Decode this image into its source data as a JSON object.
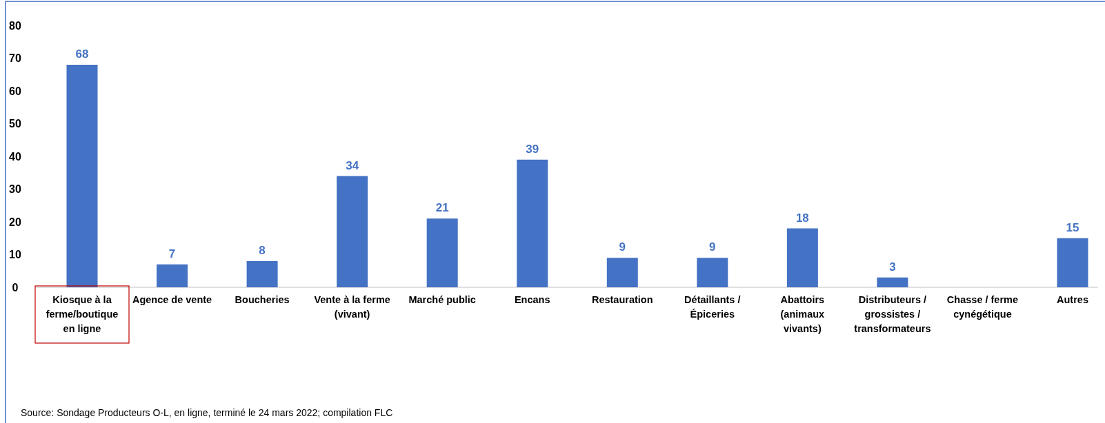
{
  "chart_data": {
    "type": "bar",
    "categories": [
      "Kiosque à la ferme/boutique en ligne",
      "Agence de vente",
      "Boucheries",
      "Vente à la ferme (vivant)",
      "Marché public",
      "Encans",
      "Restauration",
      "Détaillants / Épiceries",
      "Abattoirs (animaux vivants)",
      "Distributeurs / grossistes / transformateurs",
      "Chasse / ferme cynégétique",
      "Autres"
    ],
    "values": [
      68,
      7,
      8,
      34,
      21,
      39,
      9,
      9,
      18,
      3,
      null,
      15
    ],
    "value_labels": [
      "68",
      "7",
      "8",
      "34",
      "21",
      "39",
      "9",
      "9",
      "18",
      "3",
      null,
      "15"
    ],
    "color": "#4472c4",
    "ylim": [
      0,
      80
    ],
    "yticks": [
      0,
      10,
      20,
      30,
      40,
      50,
      60,
      70,
      80
    ],
    "grid": false,
    "annotations": [
      "Source: Sondage Producteurs O-L, en ligne, terminé le 24 mars 2022; compilation FLC"
    ]
  }
}
